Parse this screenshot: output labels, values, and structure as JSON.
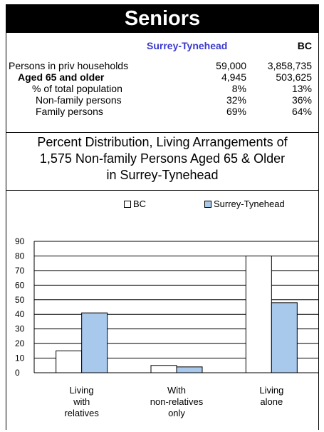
{
  "header": {
    "title": "Seniors"
  },
  "table": {
    "col_headers": [
      "Surrey-Tynehead",
      "BC"
    ],
    "rows": [
      {
        "label": "Persons in priv households",
        "surrey": "59,000",
        "bc": "3,858,735"
      },
      {
        "label": "Aged 65 and older",
        "surrey": "4,945",
        "bc": "503,625"
      },
      {
        "label": "% of total population",
        "surrey": "8%",
        "bc": "13%"
      },
      {
        "label": "Non-family persons",
        "surrey": "32%",
        "bc": "36%"
      },
      {
        "label": "Family persons",
        "surrey": "69%",
        "bc": "64%"
      }
    ]
  },
  "chart_title_lines": [
    "Percent Distribution, Living Arrangements of",
    "1,575 Non-family Persons Aged 65 & Older",
    "in Surrey-Tynehead"
  ],
  "colors": {
    "bc": "#ffffff",
    "surrey": "#a8c8ec",
    "surrey_header": "#3a3acc"
  },
  "chart_data": {
    "type": "bar",
    "categories": [
      [
        "Living",
        "with",
        "relatives"
      ],
      [
        "With",
        "non-relatives",
        "only"
      ],
      [
        "Living",
        "alone"
      ]
    ],
    "series": [
      {
        "name": "BC",
        "values": [
          15,
          5,
          80
        ]
      },
      {
        "name": "Surrey-Tynehead",
        "values": [
          41,
          4,
          48
        ]
      }
    ],
    "ylim": [
      0,
      90
    ],
    "yticks": [
      0,
      10,
      20,
      30,
      40,
      50,
      60,
      70,
      80,
      90
    ],
    "grid": true,
    "legend": "top"
  }
}
